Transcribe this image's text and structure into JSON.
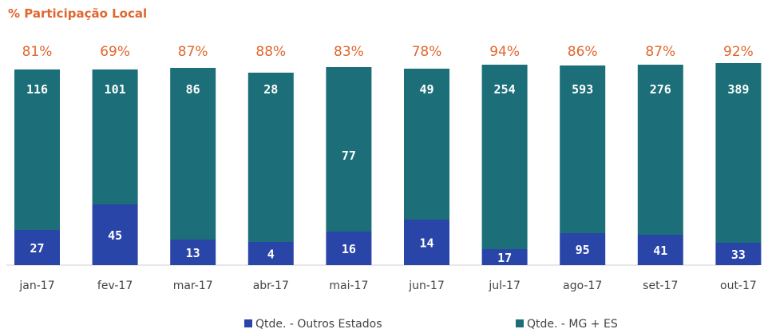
{
  "chart_data": {
    "type": "bar",
    "stacked": true,
    "title": "% Participação Local",
    "categories": [
      "jan-17",
      "fev-17",
      "mar-17",
      "abr-17",
      "mai-17",
      "jun-17",
      "jul-17",
      "ago-17",
      "set-17",
      "out-17"
    ],
    "series": [
      {
        "name": "Qtde. - Outros Estados",
        "color": "#2a45a8",
        "values": [
          27,
          45,
          13,
          4,
          16,
          14,
          17,
          95,
          41,
          33
        ]
      },
      {
        "name": "Qtde. - MG + ES",
        "color": "#1c6e78",
        "values": [
          116,
          101,
          86,
          28,
          77,
          49,
          254,
          593,
          276,
          389
        ]
      }
    ],
    "percent_labels": [
      "81%",
      "69%",
      "87%",
      "88%",
      "83%",
      "78%",
      "94%",
      "86%",
      "87%",
      "92%"
    ],
    "percent_color": "#e0672e",
    "legend_position": "bottom",
    "grid": false
  }
}
